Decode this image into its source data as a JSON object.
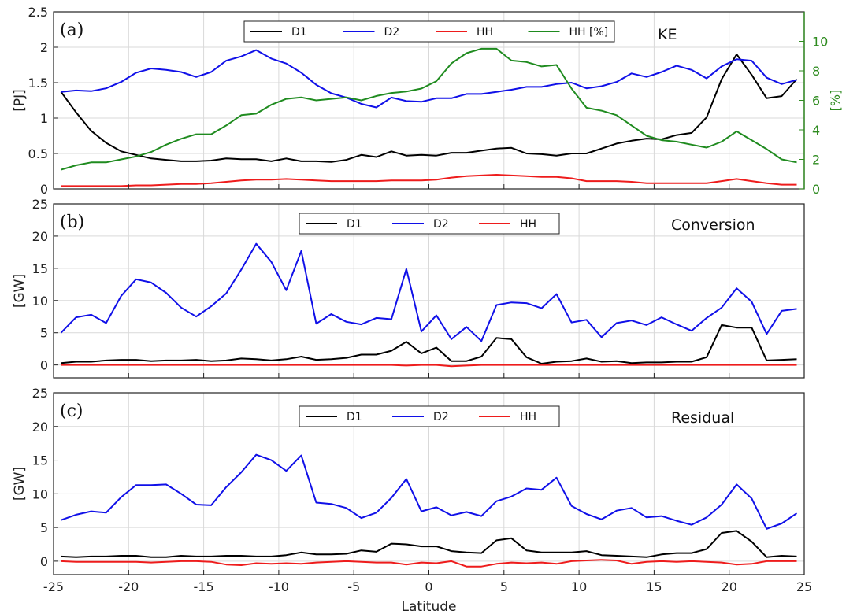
{
  "xlabel": "Latitude",
  "x_ticks": [
    -25,
    -20,
    -15,
    -10,
    -5,
    0,
    5,
    10,
    15,
    20,
    25
  ],
  "chart_data": [
    {
      "type": "line",
      "tag": "(a)",
      "title": "KE",
      "ylabel": "[PJ]",
      "ylabel_right": "[%]",
      "xlim": [
        -25,
        25
      ],
      "ylim": [
        0,
        2.5
      ],
      "y_ticks": [
        0,
        0.5,
        1,
        1.5,
        2,
        2.5
      ],
      "ylim_right": [
        0,
        12
      ],
      "y_ticks_right": [
        0,
        2,
        4,
        6,
        8,
        10
      ],
      "grid": true,
      "legend": "top-center",
      "x": [
        -24.5,
        -23.5,
        -22.5,
        -21.5,
        -20.5,
        -19.5,
        -18.5,
        -17.5,
        -16.5,
        -15.5,
        -14.5,
        -13.5,
        -12.5,
        -11.5,
        -10.5,
        -9.5,
        -8.5,
        -7.5,
        -6.5,
        -5.5,
        -4.5,
        -3.5,
        -2.5,
        -1.5,
        -0.5,
        0.5,
        1.5,
        2.5,
        3.5,
        4.5,
        5.5,
        6.5,
        7.5,
        8.5,
        9.5,
        10.5,
        11.5,
        12.5,
        13.5,
        14.5,
        15.5,
        16.5,
        17.5,
        18.5,
        19.5,
        20.5,
        21.5,
        22.5,
        23.5,
        24.5
      ],
      "series": [
        {
          "name": "D1",
          "color": "#000000",
          "axis": "left",
          "values": [
            1.37,
            1.08,
            0.82,
            0.65,
            0.53,
            0.48,
            0.43,
            0.41,
            0.39,
            0.39,
            0.4,
            0.43,
            0.42,
            0.42,
            0.39,
            0.43,
            0.39,
            0.39,
            0.38,
            0.41,
            0.48,
            0.45,
            0.53,
            0.47,
            0.48,
            0.47,
            0.51,
            0.51,
            0.54,
            0.57,
            0.58,
            0.5,
            0.49,
            0.47,
            0.5,
            0.5,
            0.57,
            0.64,
            0.68,
            0.71,
            0.7,
            0.76,
            0.79,
            1.01,
            1.55,
            1.9,
            1.61,
            1.28,
            1.31,
            1.55
          ]
        },
        {
          "name": "D2",
          "color": "#1010e8",
          "axis": "left",
          "values": [
            1.37,
            1.39,
            1.38,
            1.42,
            1.51,
            1.64,
            1.7,
            1.68,
            1.65,
            1.58,
            1.65,
            1.81,
            1.87,
            1.96,
            1.84,
            1.77,
            1.64,
            1.47,
            1.35,
            1.29,
            1.2,
            1.15,
            1.29,
            1.24,
            1.23,
            1.28,
            1.28,
            1.34,
            1.34,
            1.37,
            1.4,
            1.44,
            1.44,
            1.48,
            1.5,
            1.42,
            1.45,
            1.51,
            1.63,
            1.58,
            1.65,
            1.74,
            1.68,
            1.56,
            1.73,
            1.83,
            1.81,
            1.57,
            1.48,
            1.54
          ]
        },
        {
          "name": "HH",
          "color": "#ee1c1c",
          "axis": "left",
          "values": [
            0.04,
            0.04,
            0.04,
            0.04,
            0.04,
            0.05,
            0.05,
            0.06,
            0.07,
            0.07,
            0.08,
            0.1,
            0.12,
            0.13,
            0.13,
            0.14,
            0.13,
            0.12,
            0.11,
            0.11,
            0.11,
            0.11,
            0.12,
            0.12,
            0.12,
            0.13,
            0.16,
            0.18,
            0.19,
            0.2,
            0.19,
            0.18,
            0.17,
            0.17,
            0.15,
            0.11,
            0.11,
            0.11,
            0.1,
            0.08,
            0.08,
            0.08,
            0.08,
            0.08,
            0.11,
            0.14,
            0.11,
            0.08,
            0.06,
            0.06
          ]
        },
        {
          "name": "HH [%]",
          "color": "#1f8b1f",
          "axis": "right",
          "values": [
            1.3,
            1.6,
            1.8,
            1.8,
            2.0,
            2.2,
            2.5,
            3.0,
            3.4,
            3.7,
            3.7,
            4.3,
            5.0,
            5.1,
            5.7,
            6.1,
            6.2,
            6.0,
            6.1,
            6.2,
            6.0,
            6.3,
            6.5,
            6.6,
            6.8,
            7.3,
            8.5,
            9.2,
            9.5,
            9.5,
            8.7,
            8.6,
            8.3,
            8.4,
            6.8,
            5.5,
            5.3,
            5.0,
            4.3,
            3.6,
            3.3,
            3.2,
            3.0,
            2.8,
            3.2,
            3.9,
            3.3,
            2.7,
            2.0,
            1.8
          ]
        }
      ]
    },
    {
      "type": "line",
      "tag": "(b)",
      "title": "Conversion",
      "ylabel": "[GW]",
      "xlim": [
        -25,
        25
      ],
      "ylim": [
        -2,
        25
      ],
      "y_ticks": [
        0,
        5,
        10,
        15,
        20,
        25
      ],
      "grid": true,
      "legend": "top-center",
      "x": [
        -24.5,
        -23.5,
        -22.5,
        -21.5,
        -20.5,
        -19.5,
        -18.5,
        -17.5,
        -16.5,
        -15.5,
        -14.5,
        -13.5,
        -12.5,
        -11.5,
        -10.5,
        -9.5,
        -8.5,
        -7.5,
        -6.5,
        -5.5,
        -4.5,
        -3.5,
        -2.5,
        -1.5,
        -0.5,
        0.5,
        1.5,
        2.5,
        3.5,
        4.5,
        5.5,
        6.5,
        7.5,
        8.5,
        9.5,
        10.5,
        11.5,
        12.5,
        13.5,
        14.5,
        15.5,
        16.5,
        17.5,
        18.5,
        19.5,
        20.5,
        21.5,
        22.5,
        23.5,
        24.5
      ],
      "series": [
        {
          "name": "D1",
          "color": "#000000",
          "values": [
            0.3,
            0.5,
            0.5,
            0.7,
            0.8,
            0.8,
            0.6,
            0.7,
            0.7,
            0.8,
            0.6,
            0.7,
            1.0,
            0.9,
            0.7,
            0.9,
            1.3,
            0.8,
            0.9,
            1.1,
            1.6,
            1.6,
            2.2,
            3.6,
            1.8,
            2.7,
            0.6,
            0.6,
            1.3,
            4.2,
            4.0,
            1.2,
            0.2,
            0.5,
            0.6,
            1.0,
            0.5,
            0.6,
            0.3,
            0.4,
            0.4,
            0.5,
            0.5,
            1.2,
            6.2,
            5.8,
            5.8,
            0.7,
            0.8,
            0.9
          ]
        },
        {
          "name": "D2",
          "color": "#1010e8",
          "values": [
            5.0,
            7.4,
            7.8,
            6.5,
            10.7,
            13.3,
            12.8,
            11.2,
            8.9,
            7.5,
            9.1,
            11.1,
            14.8,
            18.8,
            16.0,
            11.6,
            17.7,
            6.4,
            7.9,
            6.7,
            6.3,
            7.3,
            7.1,
            14.9,
            5.2,
            7.7,
            4.0,
            5.9,
            3.7,
            9.3,
            9.7,
            9.6,
            8.8,
            11.0,
            6.6,
            7.0,
            4.3,
            6.5,
            6.9,
            6.2,
            7.4,
            6.3,
            5.3,
            7.3,
            8.9,
            11.9,
            9.8,
            4.8,
            8.4,
            8.7
          ]
        },
        {
          "name": "HH",
          "color": "#ee1c1c",
          "values": [
            0.0,
            0.0,
            0.0,
            0.0,
            0.0,
            0.0,
            0.0,
            0.0,
            0.0,
            0.0,
            0.0,
            0.0,
            0.0,
            0.0,
            0.0,
            0.0,
            0.0,
            0.0,
            0.0,
            0.0,
            0.0,
            0.0,
            0.0,
            -0.1,
            0.0,
            0.0,
            -0.2,
            -0.1,
            0.0,
            0.0,
            0.0,
            0.0,
            0.0,
            0.0,
            0.0,
            0.0,
            0.0,
            0.0,
            0.0,
            0.0,
            0.0,
            0.0,
            0.0,
            0.0,
            0.0,
            0.0,
            0.0,
            0.0,
            0.0,
            0.0
          ]
        }
      ]
    },
    {
      "type": "line",
      "tag": "(c)",
      "title": "Residual",
      "ylabel": "[GW]",
      "xlim": [
        -25,
        25
      ],
      "ylim": [
        -2,
        25
      ],
      "y_ticks": [
        0,
        5,
        10,
        15,
        20,
        25
      ],
      "grid": true,
      "legend": "top-center",
      "x": [
        -24.5,
        -23.5,
        -22.5,
        -21.5,
        -20.5,
        -19.5,
        -18.5,
        -17.5,
        -16.5,
        -15.5,
        -14.5,
        -13.5,
        -12.5,
        -11.5,
        -10.5,
        -9.5,
        -8.5,
        -7.5,
        -6.5,
        -5.5,
        -4.5,
        -3.5,
        -2.5,
        -1.5,
        -0.5,
        0.5,
        1.5,
        2.5,
        3.5,
        4.5,
        5.5,
        6.5,
        7.5,
        8.5,
        9.5,
        10.5,
        11.5,
        12.5,
        13.5,
        14.5,
        15.5,
        16.5,
        17.5,
        18.5,
        19.5,
        20.5,
        21.5,
        22.5,
        23.5,
        24.5
      ],
      "series": [
        {
          "name": "D1",
          "color": "#000000",
          "values": [
            0.7,
            0.6,
            0.7,
            0.7,
            0.8,
            0.8,
            0.6,
            0.6,
            0.8,
            0.7,
            0.7,
            0.8,
            0.8,
            0.7,
            0.7,
            0.9,
            1.3,
            1.0,
            1.0,
            1.1,
            1.6,
            1.4,
            2.6,
            2.5,
            2.2,
            2.2,
            1.5,
            1.3,
            1.2,
            3.1,
            3.4,
            1.6,
            1.3,
            1.3,
            1.3,
            1.5,
            0.9,
            0.8,
            0.7,
            0.6,
            1.0,
            1.2,
            1.2,
            1.8,
            4.2,
            4.5,
            2.9,
            0.6,
            0.8,
            0.7
          ]
        },
        {
          "name": "D2",
          "color": "#1010e8",
          "values": [
            6.1,
            6.9,
            7.4,
            7.2,
            9.5,
            11.3,
            11.3,
            11.4,
            10.0,
            8.4,
            8.3,
            11.0,
            13.2,
            15.8,
            15.0,
            13.4,
            15.7,
            8.7,
            8.5,
            7.9,
            6.4,
            7.2,
            9.4,
            12.2,
            7.4,
            8.0,
            6.8,
            7.3,
            6.7,
            8.9,
            9.6,
            10.8,
            10.6,
            12.4,
            8.2,
            7.0,
            6.2,
            7.5,
            7.9,
            6.5,
            6.7,
            6.0,
            5.4,
            6.5,
            8.4,
            11.4,
            9.3,
            4.8,
            5.6,
            7.1
          ]
        },
        {
          "name": "HH",
          "color": "#ee1c1c",
          "values": [
            0.0,
            -0.1,
            -0.1,
            -0.1,
            -0.1,
            -0.1,
            -0.2,
            -0.1,
            0.0,
            0.0,
            -0.1,
            -0.5,
            -0.6,
            -0.3,
            -0.4,
            -0.3,
            -0.4,
            -0.2,
            -0.1,
            0.0,
            -0.1,
            -0.2,
            -0.2,
            -0.5,
            -0.2,
            -0.3,
            0.0,
            -0.8,
            -0.8,
            -0.4,
            -0.2,
            -0.3,
            -0.2,
            -0.4,
            0.0,
            0.1,
            0.2,
            0.1,
            -0.4,
            -0.1,
            0.0,
            -0.1,
            0.0,
            -0.1,
            -0.2,
            -0.5,
            -0.4,
            0.0,
            0.0,
            0.0
          ]
        }
      ]
    }
  ]
}
